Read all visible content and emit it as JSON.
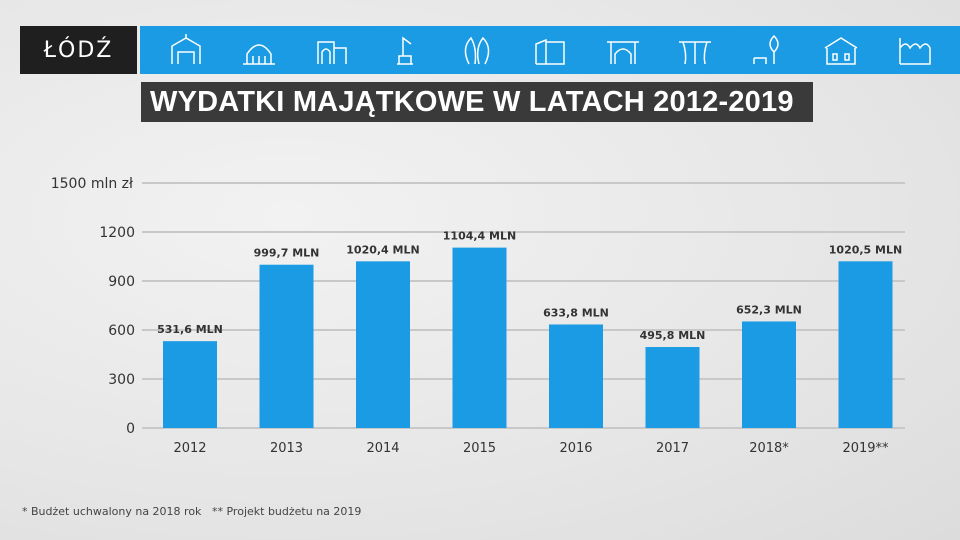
{
  "logo": {
    "text": "ŁÓDŹ"
  },
  "banner": {
    "icons": [
      "gate-icon",
      "station-dome-icon",
      "building-facade-icon",
      "monument-icon",
      "sculpture-icon",
      "modern-building-icon",
      "arcade-icon",
      "canopy-icon",
      "park-bench-tree-icon",
      "palace-icon",
      "factory-icon"
    ]
  },
  "colors": {
    "bar": "#1a9be3",
    "band": "#1a9be3",
    "title_bg": "#3a3a3a",
    "grid": "#c8c8c8"
  },
  "chart_data": {
    "type": "bar",
    "title": "WYDATKI MAJĄTKOWE W LATACH 2012-2019",
    "categories": [
      "2012",
      "2013",
      "2014",
      "2015",
      "2016",
      "2017",
      "2018*",
      "2019**"
    ],
    "values": [
      531.6,
      999.7,
      1020.4,
      1104.4,
      633.8,
      495.8,
      652.3,
      1020.5
    ],
    "data_labels": [
      "531,6 MLN",
      "999,7 MLN",
      "1020,4 MLN",
      "1104,4 MLN",
      "633,8 MLN",
      "495,8 MLN",
      "652,3 MLN",
      "1020,5 MLN"
    ],
    "yticks": [
      0,
      300,
      600,
      900,
      1200,
      1500
    ],
    "ytick_labels": [
      "0",
      "300",
      "600",
      "900",
      "1200",
      "1500 mln zł"
    ],
    "ylim": [
      0,
      1500
    ],
    "xlabel": "",
    "ylabel": "mln zł",
    "grid": true
  },
  "footnotes": [
    "* Budżet uchwalony na 2018 rok",
    "** Projekt budżetu na 2019"
  ]
}
